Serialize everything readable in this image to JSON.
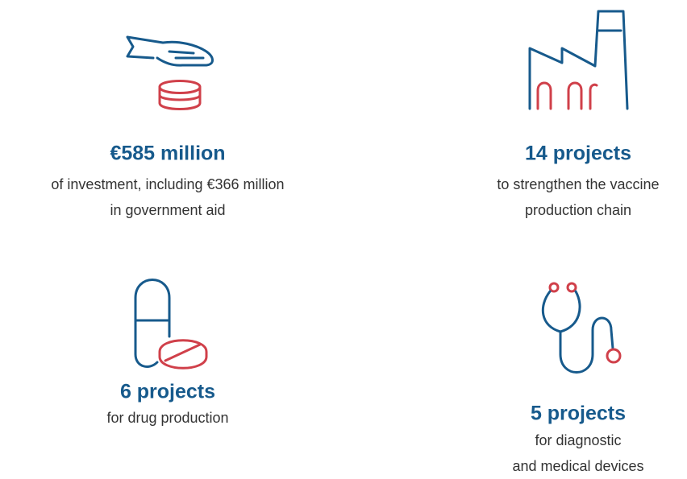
{
  "items": [
    {
      "headline": "€585 million",
      "description": [
        "of investment, including €366 million",
        "in government aid"
      ]
    },
    {
      "headline": "14 projects",
      "description": [
        "to strengthen the vaccine",
        "production chain"
      ]
    },
    {
      "headline": "6 projects",
      "description": [
        "for drug production"
      ]
    },
    {
      "headline": "5 projects",
      "description": [
        "for diagnostic",
        "and medical devices"
      ]
    }
  ]
}
